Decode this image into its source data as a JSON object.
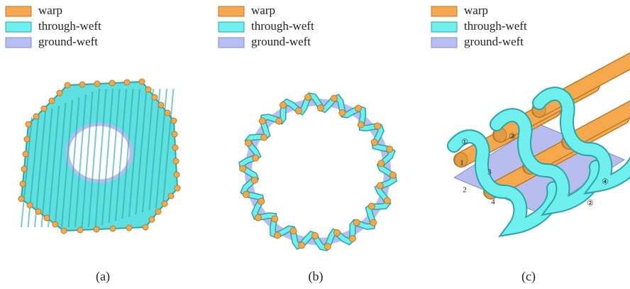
{
  "panels": [
    {
      "legend": [
        "warp",
        "through-weft",
        "ground-weft"
      ],
      "caption": "(a)"
    },
    {
      "legend": [
        "warp",
        "through-weft",
        "ground-weft"
      ],
      "caption": "(b)"
    },
    {
      "legend": [
        "warp",
        "through-weft",
        "ground-weft"
      ],
      "caption": "(c)"
    }
  ],
  "panel_c_labels": {
    "circled": [
      "①",
      "②",
      "③",
      "④"
    ],
    "plain": [
      "1",
      "2",
      "3",
      "4"
    ]
  }
}
